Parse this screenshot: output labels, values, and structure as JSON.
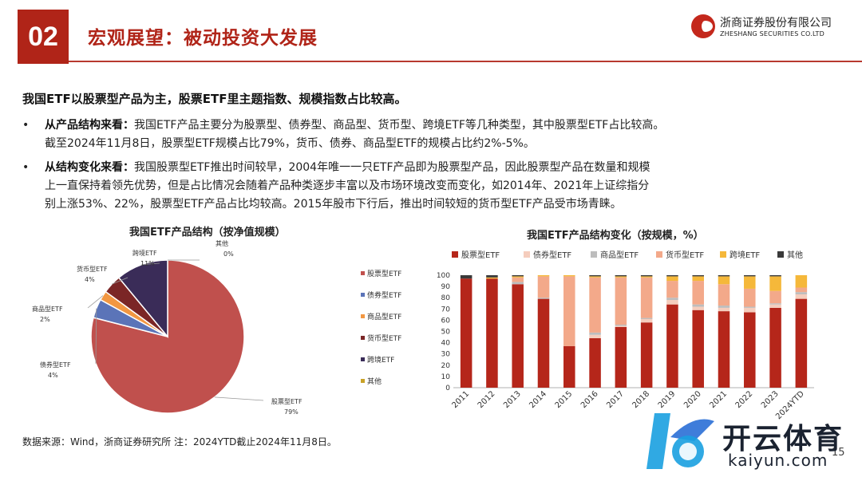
{
  "header": {
    "section_number": "02",
    "title": "宏观展望：被动投资大发展",
    "logo_cn": "浙商证券股份有限公司",
    "logo_en": "ZHESHANG SECURITIES CO.LTD"
  },
  "body": {
    "lead": "我国ETF以股票型产品为主，股票ETF里主题指数、规模指数占比较高。",
    "bullets": [
      {
        "dot": "•",
        "heading": "从产品结构来看：",
        "line1": "我国ETF产品主要分为股票型、债券型、商品型、货币型、跨境ETF等几种类型，其中股票型ETF占比较高。",
        "line2": "截至2024年11月8日，股票型ETF规模占比79%，货币、债券、商品型ETF的规模占比约2%-5%。"
      },
      {
        "dot": "•",
        "heading": "从结构变化来看：",
        "line1": "我国股票型ETF推出时间较早，2004年唯一一只ETF产品即为股票型产品，因此股票型产品在数量和规模",
        "line2": "上一直保持着领先优势，但是占比情况会随着产品种类逐步丰富以及市场环境改变而变化，如2014年、2021年上证综指分",
        "line3": "别上涨53%、22%，股票型ETF产品占比均较高。2015年股市下行后，推出时间较短的货币型ETF产品受市场青睐。"
      }
    ]
  },
  "footer": {
    "source": "数据来源：Wind，浙商证券研究所 注：2024YTD截止2024年11月8日。",
    "page": "15"
  },
  "watermark": {
    "text": "开云体育",
    "url": "kaiyun.com"
  },
  "colors": {
    "stock": "#b5261a",
    "bond": "#f5cdbd",
    "commodity": "#bdbdbd",
    "money": "#f3a98a",
    "cross_border": "#f5b83a",
    "other": "#3a3a3a",
    "pie_stock": "#c0504d",
    "pie_bond": "#5b74b8",
    "pie_commodity": "#f29742",
    "pie_money": "#7b2626",
    "pie_cross": "#3a2c58",
    "pie_other": "#c9a227"
  },
  "chart_data": [
    {
      "type": "pie",
      "title": "我国ETF产品结构（按净值规模）",
      "slices": [
        {
          "name": "股票型ETF",
          "value": 79,
          "label": "79%"
        },
        {
          "name": "债券型ETF",
          "value": 4,
          "label": "4%"
        },
        {
          "name": "商品型ETF",
          "value": 2,
          "label": "2%"
        },
        {
          "name": "货币型ETF",
          "value": 4,
          "label": "4%"
        },
        {
          "name": "跨境ETF",
          "value": 11,
          "label": "11%"
        },
        {
          "name": "其他",
          "value": 0,
          "label": "0%"
        }
      ],
      "legend": [
        "股票型ETF",
        "债券型ETF",
        "商品型ETF",
        "货币型ETF",
        "跨境ETF",
        "其他"
      ],
      "legend_position": "right"
    },
    {
      "type": "bar",
      "stacked": true,
      "title": "我国ETF产品结构变化（按规模，%）",
      "categories": [
        "2011",
        "2012",
        "2013",
        "2014",
        "2015",
        "2016",
        "2017",
        "2018",
        "2019",
        "2020",
        "2021",
        "2022",
        "2023",
        "2024YTD"
      ],
      "series": [
        {
          "name": "股票型ETF",
          "values": [
            97,
            97,
            92,
            79,
            37,
            44,
            54,
            58,
            74,
            69,
            68,
            67,
            71,
            79
          ]
        },
        {
          "name": "债券型ETF",
          "values": [
            0,
            0,
            0,
            0,
            0,
            3,
            1,
            3,
            4,
            3,
            3,
            4,
            3,
            4
          ]
        },
        {
          "name": "商品型ETF",
          "values": [
            0,
            0,
            2,
            1,
            0,
            2,
            1,
            1,
            2,
            2,
            2,
            1,
            1,
            2
          ]
        },
        {
          "name": "货币型ETF",
          "values": [
            0,
            0,
            4,
            19,
            62,
            49,
            42,
            36,
            15,
            21,
            19,
            16,
            11,
            4
          ]
        },
        {
          "name": "跨境ETF",
          "values": [
            0,
            1,
            1,
            1,
            1,
            1,
            1,
            1,
            4,
            4,
            7,
            11,
            13,
            11
          ]
        },
        {
          "name": "其他",
          "values": [
            3,
            2,
            1,
            0,
            0,
            1,
            1,
            1,
            1,
            1,
            1,
            1,
            1,
            0
          ]
        }
      ],
      "ylim": [
        0,
        100
      ],
      "yticks": [
        "0",
        "10",
        "20",
        "30",
        "40",
        "50",
        "60",
        "70",
        "80",
        "90",
        "100"
      ],
      "legend_position": "top"
    }
  ]
}
